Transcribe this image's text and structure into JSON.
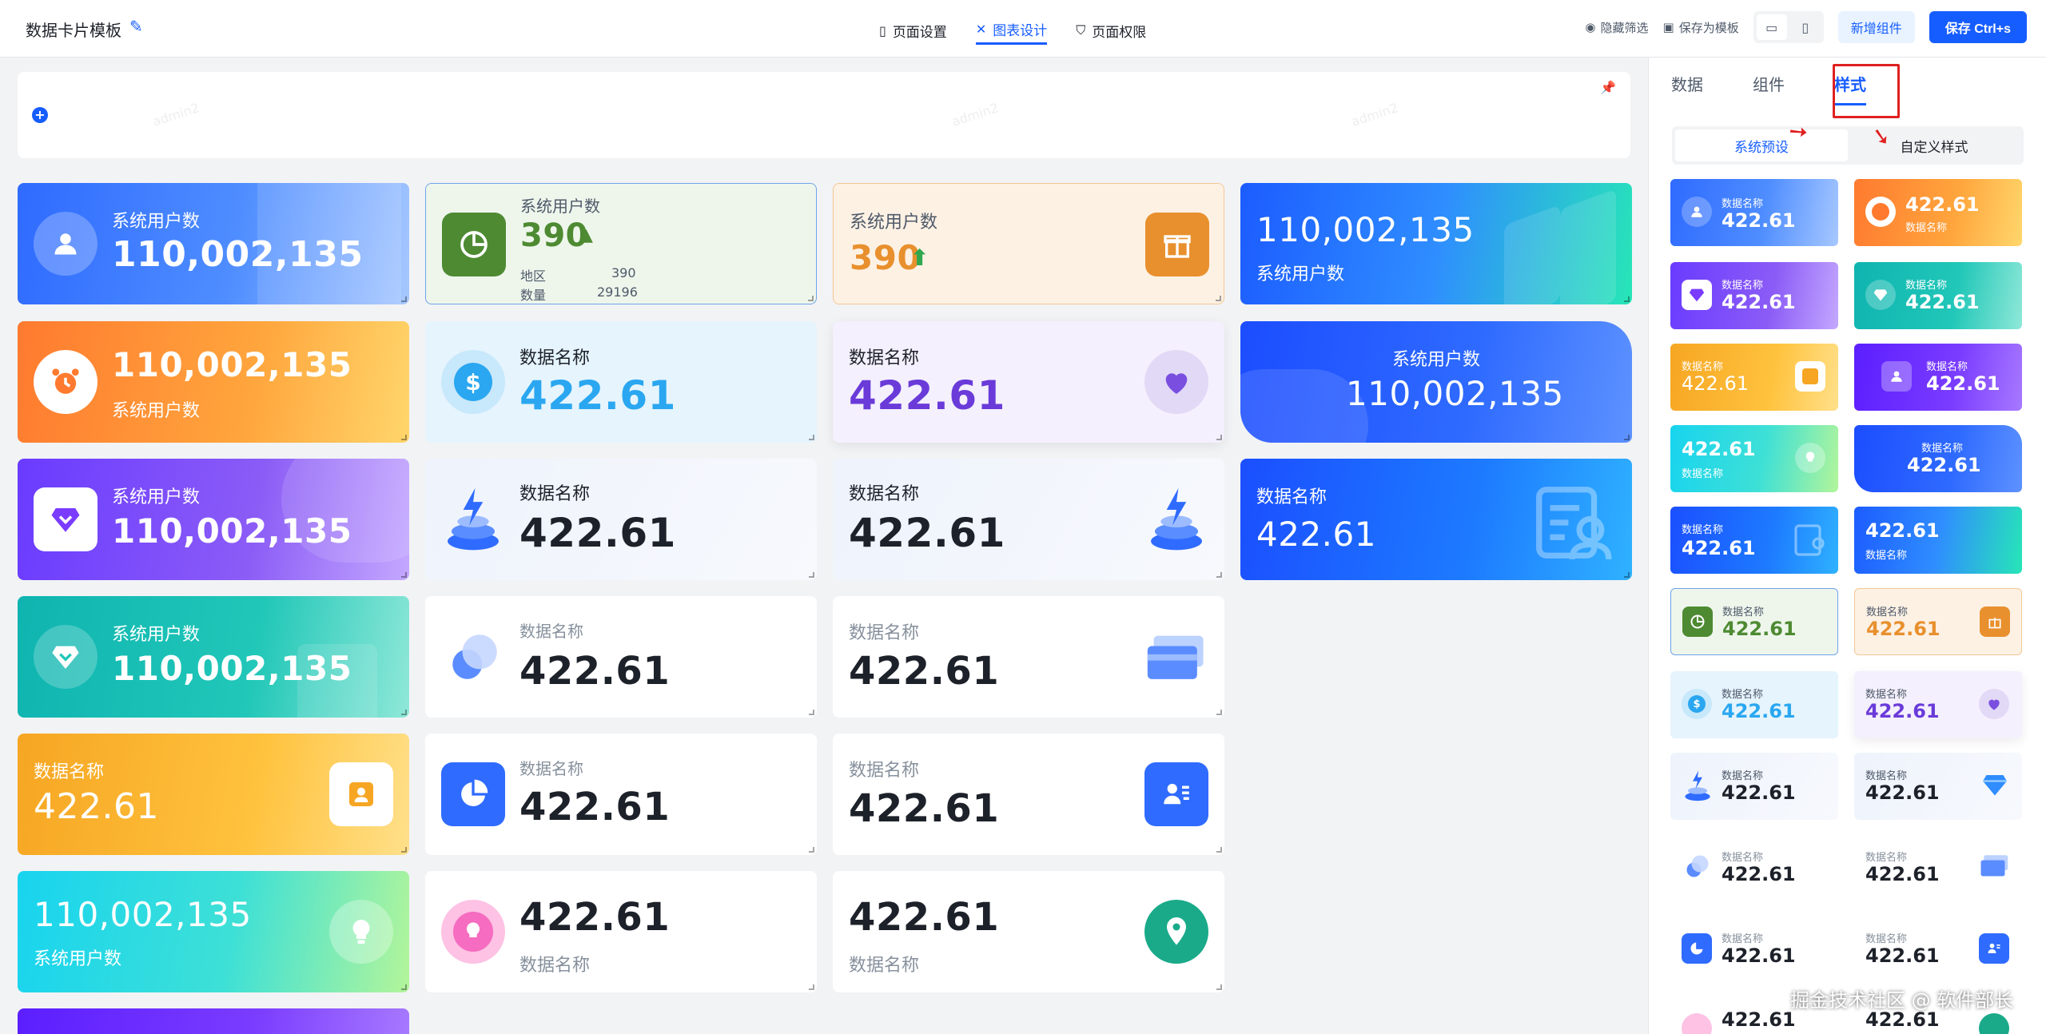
{
  "header": {
    "title": "数据卡片模板",
    "nav": [
      {
        "label": "页面设置",
        "icon": "bookmark-icon"
      },
      {
        "label": "图表设计",
        "icon": "chart-design-icon"
      },
      {
        "label": "页面权限",
        "icon": "shield-icon"
      }
    ],
    "hide_filter": "隐藏筛选",
    "save_template": "保存为模板",
    "add_component": "新增组件",
    "save": "保存 Ctrl+s"
  },
  "watermark": "admin2",
  "cards": {
    "c1": {
      "label": "系统用户数",
      "value": "110,002,135"
    },
    "c2": {
      "label": "系统用户数",
      "value": "390",
      "row1_k": "地区",
      "row1_v": "390",
      "row2_k": "数量",
      "row2_v": "29196"
    },
    "c3": {
      "label": "系统用户数",
      "value": "390"
    },
    "c4": {
      "label": "系统用户数",
      "value": "110,002,135"
    },
    "c5": {
      "label": "系统用户数",
      "value": "110,002,135"
    },
    "c6": {
      "label": "数据名称",
      "value": "422.61"
    },
    "c7": {
      "label": "数据名称",
      "value": "422.61"
    },
    "c8": {
      "label": "系统用户数",
      "value": "110,002,135"
    },
    "c9": {
      "label": "系统用户数",
      "value": "110,002,135"
    },
    "c10": {
      "label": "数据名称",
      "value": "422.61"
    },
    "c11": {
      "label": "数据名称",
      "value": "422.61"
    },
    "c12": {
      "label": "数据名称",
      "value": "422.61"
    },
    "c13": {
      "label": "系统用户数",
      "value": "110,002,135"
    },
    "c14": {
      "label": "数据名称",
      "value": "422.61"
    },
    "c15": {
      "label": "数据名称",
      "value": "422.61"
    },
    "c16": {
      "label": "数据名称",
      "value": "422.61"
    },
    "c17": {
      "label": "数据名称",
      "value": "422.61"
    },
    "c18": {
      "label": "数据名称",
      "value": "422.61"
    },
    "c19": {
      "label": "系统用户数",
      "value": "110,002,135"
    },
    "c20": {
      "label": "数据名称",
      "value": "422.61"
    },
    "c21": {
      "label": "数据名称",
      "value": "422.61"
    }
  },
  "panel": {
    "tabs": [
      "数据",
      "组件",
      "样式"
    ],
    "seg": [
      "系统预设",
      "自定义样式"
    ],
    "thumb_label": "数据名称",
    "thumb_value": "422.61"
  },
  "credit": "掘金技术社区 @ 软件部长"
}
